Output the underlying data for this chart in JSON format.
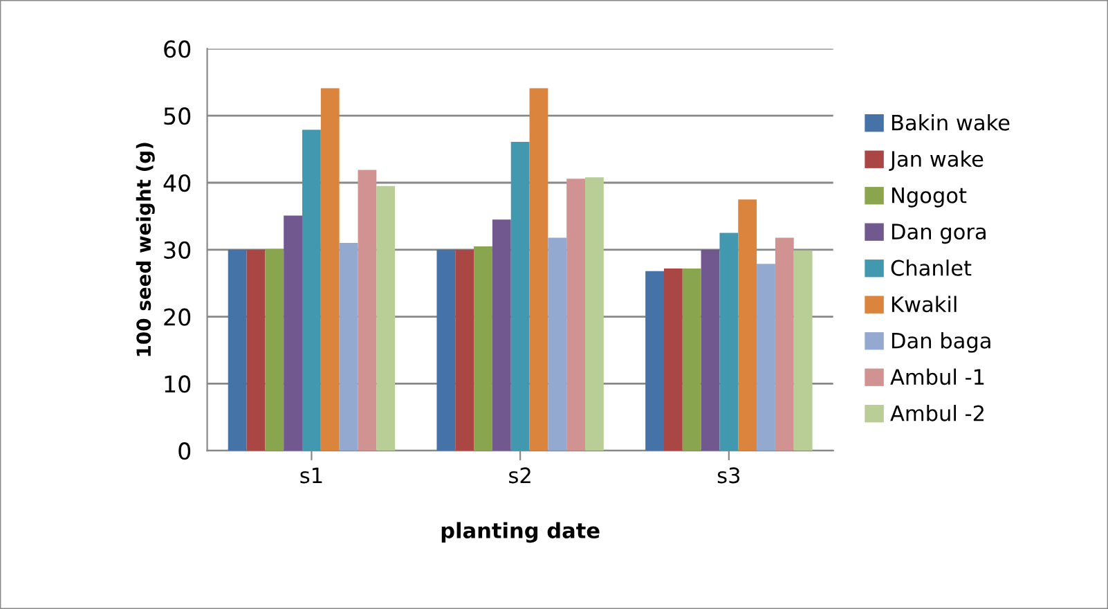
{
  "chart_data": {
    "type": "bar",
    "xlabel": "planting date",
    "ylabel": "100 seed weight (g)",
    "categories": [
      "s1",
      "s2",
      "s3"
    ],
    "series": [
      {
        "name": "Bakin wake",
        "color": "#4572a7",
        "values": [
          30,
          30,
          26.8
        ]
      },
      {
        "name": "Jan wake",
        "color": "#aa4643",
        "values": [
          30,
          30,
          27.2
        ]
      },
      {
        "name": "Ngogot",
        "color": "#89a54e",
        "values": [
          30.1,
          30.5,
          27.2
        ]
      },
      {
        "name": "Dan gora",
        "color": "#71588f",
        "values": [
          35.1,
          34.5,
          30.0
        ]
      },
      {
        "name": "Chanlet",
        "color": "#4198af",
        "values": [
          47.9,
          46.1,
          32.5
        ]
      },
      {
        "name": "Kwakil",
        "color": "#db843d",
        "values": [
          54.1,
          54.1,
          37.5
        ]
      },
      {
        "name": "Dan baga",
        "color": "#93a9cf",
        "values": [
          31.0,
          31.8,
          27.9
        ]
      },
      {
        "name": "Ambul -1",
        "color": "#d19392",
        "values": [
          41.9,
          40.6,
          31.8
        ]
      },
      {
        "name": "Ambul -2",
        "color": "#b9cd96",
        "values": [
          39.5,
          40.8,
          29.9
        ]
      }
    ],
    "ylim": [
      0,
      60
    ],
    "yticks": [
      0,
      10,
      20,
      30,
      40,
      50,
      60
    ],
    "grid": "y",
    "legend": "right"
  }
}
